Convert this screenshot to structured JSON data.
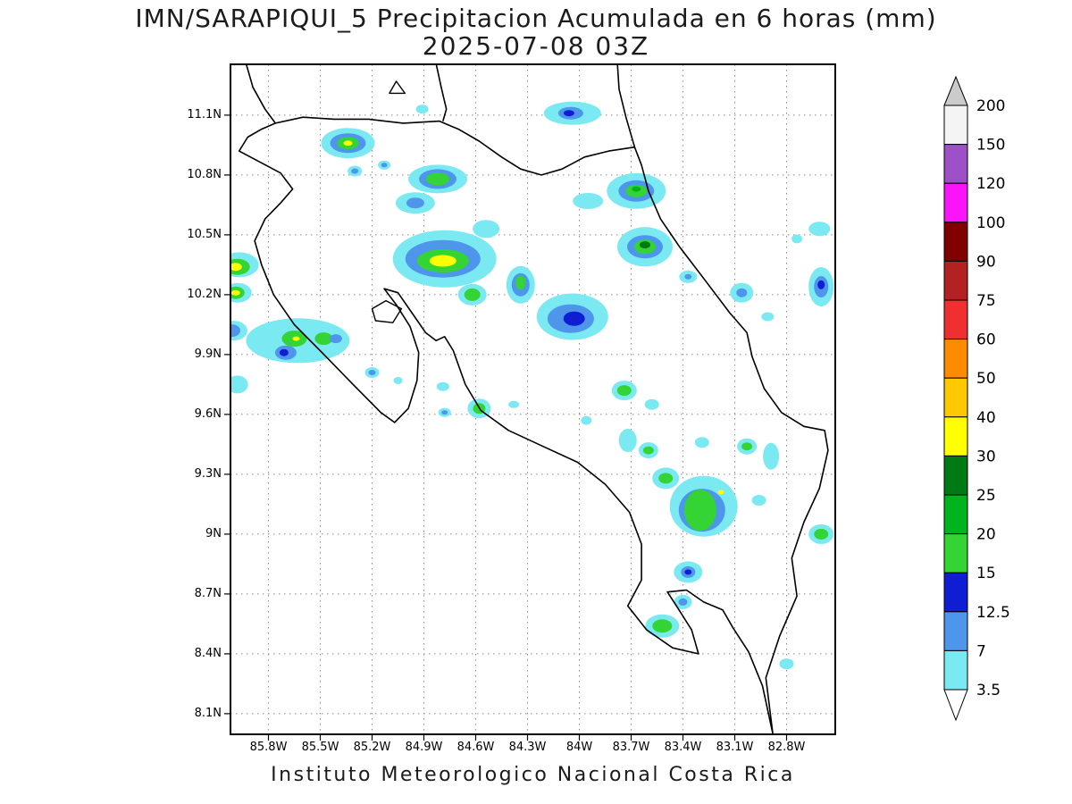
{
  "title": {
    "line1": "IMN/SARAPIQUI_5 Precipitacion Acumulada en 6 horas (mm)",
    "line2": "2025-07-08 03Z"
  },
  "footer": "Instituto Meteorologico Nacional Costa Rica",
  "axes": {
    "lat_ticks": [
      "11.1N",
      "10.8N",
      "10.5N",
      "10.2N",
      "9.9N",
      "9.6N",
      "9.3N",
      "9N",
      "8.7N",
      "8.4N",
      "8.1N"
    ],
    "lon_ticks": [
      "85.8W",
      "85.5W",
      "85.2W",
      "84.9W",
      "84.6W",
      "84.3W",
      "84W",
      "83.7W",
      "83.4W",
      "83.1W",
      "82.8W"
    ]
  },
  "colorbar": {
    "tick_labels": [
      "200",
      "150",
      "120",
      "100",
      "90",
      "75",
      "60",
      "50",
      "40",
      "30",
      "25",
      "20",
      "15",
      "12.5",
      "7",
      "3.5"
    ],
    "segment_colors": [
      "#F4F4F4",
      "#9C51C6",
      "#FA14FA",
      "#800000",
      "#B22222",
      "#F03030",
      "#FF8C00",
      "#FFC800",
      "#FFFF00",
      "#007A14",
      "#00B41E",
      "#33D433",
      "#0F1ED2",
      "#4E96EC",
      "#7BE9F1"
    ],
    "over_color": "#CBCBCB",
    "under_color": "#FFFFFF"
  },
  "map": {
    "coastline_color": "#000000",
    "grid_color": "#8a8a8a",
    "level_colors": {
      "3.5": "#7BE9F1",
      "7": "#4E96EC",
      "12.5": "#0F1ED2",
      "15": "#33D433",
      "20": "#00B41E",
      "25": "#007A14",
      "30": "#FFFF00"
    },
    "coastlines": [
      [
        [
          85.93,
          11.36
        ],
        [
          85.89,
          11.24
        ],
        [
          85.82,
          11.13
        ],
        [
          85.76,
          11.06
        ],
        [
          85.84,
          11.03
        ],
        [
          85.92,
          10.99
        ],
        [
          85.97,
          10.92
        ],
        [
          85.86,
          10.87
        ],
        [
          85.73,
          10.81
        ],
        [
          85.66,
          10.73
        ],
        [
          85.73,
          10.66
        ],
        [
          85.82,
          10.58
        ],
        [
          85.88,
          10.47
        ],
        [
          85.84,
          10.35
        ],
        [
          85.77,
          10.2
        ],
        [
          85.65,
          10.05
        ],
        [
          85.49,
          9.91
        ],
        [
          85.31,
          9.75
        ],
        [
          85.15,
          9.61
        ],
        [
          85.07,
          9.56
        ],
        [
          84.99,
          9.63
        ],
        [
          84.94,
          9.77
        ],
        [
          84.93,
          9.91
        ],
        [
          84.98,
          10.04
        ],
        [
          85.06,
          10.15
        ],
        [
          85.13,
          10.23
        ],
        [
          85.05,
          10.21
        ],
        [
          84.97,
          10.11
        ],
        [
          84.89,
          10.01
        ],
        [
          84.83,
          9.97
        ],
        [
          84.78,
          9.99
        ],
        [
          84.73,
          9.92
        ],
        [
          84.66,
          9.75
        ],
        [
          84.57,
          9.62
        ],
        [
          84.41,
          9.52
        ],
        [
          84.21,
          9.44
        ],
        [
          84.01,
          9.36
        ],
        [
          83.85,
          9.25
        ],
        [
          83.71,
          9.11
        ],
        [
          83.64,
          8.95
        ],
        [
          83.64,
          8.77
        ],
        [
          83.72,
          8.64
        ],
        [
          83.61,
          8.52
        ],
        [
          83.46,
          8.43
        ],
        [
          83.31,
          8.4
        ],
        [
          83.35,
          8.52
        ],
        [
          83.43,
          8.63
        ],
        [
          83.49,
          8.71
        ],
        [
          83.38,
          8.72
        ],
        [
          83.28,
          8.66
        ],
        [
          83.17,
          8.62
        ],
        [
          83.11,
          8.53
        ],
        [
          83.02,
          8.41
        ],
        [
          82.94,
          8.24
        ],
        [
          82.88,
          8.0
        ],
        [
          82.92,
          8.28
        ],
        [
          82.84,
          8.49
        ],
        [
          82.74,
          8.69
        ],
        [
          82.77,
          8.88
        ],
        [
          82.7,
          9.06
        ],
        [
          82.61,
          9.23
        ],
        [
          82.56,
          9.42
        ],
        [
          82.58,
          9.52
        ],
        [
          82.7,
          9.54
        ],
        [
          82.83,
          9.61
        ],
        [
          82.93,
          9.73
        ],
        [
          83.0,
          9.89
        ],
        [
          83.03,
          10.01
        ],
        [
          83.13,
          10.11
        ],
        [
          83.27,
          10.27
        ],
        [
          83.42,
          10.44
        ],
        [
          83.53,
          10.58
        ],
        [
          83.6,
          10.72
        ],
        [
          83.64,
          10.85
        ],
        [
          83.68,
          10.94
        ],
        [
          83.73,
          11.09
        ],
        [
          83.77,
          11.23
        ],
        [
          83.78,
          11.36
        ]
      ],
      [
        [
          85.76,
          11.06
        ],
        [
          85.6,
          11.09
        ],
        [
          85.42,
          11.08
        ],
        [
          85.22,
          11.08
        ],
        [
          85.02,
          11.06
        ],
        [
          84.81,
          11.07
        ],
        [
          84.7,
          11.03
        ],
        [
          84.58,
          10.97
        ],
        [
          84.45,
          10.89
        ],
        [
          84.34,
          10.83
        ],
        [
          84.22,
          10.8
        ],
        [
          84.1,
          10.83
        ],
        [
          83.97,
          10.89
        ],
        [
          83.83,
          10.92
        ],
        [
          83.68,
          10.94
        ]
      ],
      [
        [
          84.83,
          11.36
        ],
        [
          84.8,
          11.24
        ],
        [
          84.77,
          11.13
        ],
        [
          84.79,
          11.07
        ]
      ]
    ],
    "islands": [
      [
        [
          85.06,
          11.27
        ],
        [
          85.01,
          11.21
        ],
        [
          85.1,
          11.21
        ]
      ],
      [
        [
          85.2,
          10.13
        ],
        [
          85.12,
          10.17
        ],
        [
          85.03,
          10.13
        ],
        [
          85.08,
          10.06
        ],
        [
          85.18,
          10.07
        ]
      ]
    ],
    "precip_cells_format": "lon_W, lat_N, rx_px, ry_px, level_mm",
    "precip_cells": [
      [
        84.91,
        11.13,
        7,
        5,
        "3.5"
      ],
      [
        84.04,
        11.11,
        32,
        13,
        "3.5"
      ],
      [
        84.05,
        11.11,
        14,
        7,
        "7"
      ],
      [
        84.06,
        11.11,
        6,
        3.5,
        "12.5"
      ],
      [
        85.34,
        10.96,
        30,
        17,
        "3.5"
      ],
      [
        85.34,
        10.96,
        20,
        11,
        "7"
      ],
      [
        85.34,
        10.96,
        12,
        7,
        "15"
      ],
      [
        85.34,
        10.96,
        5,
        3,
        "30"
      ],
      [
        85.13,
        10.85,
        7,
        5,
        "3.5"
      ],
      [
        85.13,
        10.85,
        3.5,
        2.5,
        "7"
      ],
      [
        85.3,
        10.82,
        8,
        6,
        "3.5"
      ],
      [
        85.3,
        10.82,
        4,
        3,
        "7"
      ],
      [
        84.82,
        10.78,
        33,
        16,
        "3.5"
      ],
      [
        84.82,
        10.78,
        21,
        11,
        "7"
      ],
      [
        84.82,
        10.78,
        13,
        7,
        "15"
      ],
      [
        84.95,
        10.66,
        22,
        12,
        "3.5"
      ],
      [
        84.95,
        10.66,
        10,
        6,
        "7"
      ],
      [
        83.67,
        10.72,
        33,
        20,
        "3.5"
      ],
      [
        83.67,
        10.72,
        20,
        12,
        "7"
      ],
      [
        83.67,
        10.72,
        12,
        7,
        "15"
      ],
      [
        83.67,
        10.73,
        5,
        3,
        "20"
      ],
      [
        83.95,
        10.67,
        17,
        9,
        "3.5"
      ],
      [
        82.61,
        10.53,
        12,
        8,
        "3.5"
      ],
      [
        82.74,
        10.48,
        6,
        5,
        "3.5"
      ],
      [
        84.54,
        10.53,
        15,
        10,
        "3.5"
      ],
      [
        84.78,
        10.38,
        58,
        32,
        "3.5"
      ],
      [
        84.79,
        10.38,
        42,
        21,
        "7"
      ],
      [
        84.79,
        10.37,
        29,
        13,
        "15"
      ],
      [
        84.79,
        10.37,
        15,
        6.5,
        "30"
      ],
      [
        83.62,
        10.44,
        31,
        22,
        "3.5"
      ],
      [
        83.62,
        10.44,
        20,
        13,
        "7"
      ],
      [
        83.62,
        10.44,
        12,
        8,
        "15"
      ],
      [
        83.62,
        10.45,
        6,
        4,
        "25"
      ],
      [
        83.37,
        10.29,
        10,
        7,
        "3.5"
      ],
      [
        83.37,
        10.29,
        4,
        3,
        "7"
      ],
      [
        83.06,
        10.21,
        13,
        11,
        "3.5"
      ],
      [
        83.06,
        10.21,
        6,
        5,
        "7"
      ],
      [
        82.6,
        10.24,
        14,
        22,
        "3.5"
      ],
      [
        82.6,
        10.24,
        8,
        12,
        "7"
      ],
      [
        82.6,
        10.25,
        4,
        5,
        "12.5"
      ],
      [
        82.91,
        10.09,
        7,
        5,
        "3.5"
      ],
      [
        84.62,
        10.2,
        16,
        12,
        "3.5"
      ],
      [
        84.62,
        10.2,
        9,
        7,
        "15"
      ],
      [
        84.34,
        10.25,
        16,
        21,
        "3.5"
      ],
      [
        84.34,
        10.25,
        10,
        13,
        "7"
      ],
      [
        84.34,
        10.26,
        5.5,
        8,
        "15"
      ],
      [
        84.04,
        10.09,
        40,
        26,
        "3.5"
      ],
      [
        84.05,
        10.08,
        26,
        16,
        "7"
      ],
      [
        84.03,
        10.08,
        12,
        8,
        "12.5"
      ],
      [
        85.97,
        10.35,
        22,
        14,
        "3.5"
      ],
      [
        85.98,
        10.34,
        14,
        9,
        "15"
      ],
      [
        85.99,
        10.34,
        7,
        4.5,
        "30"
      ],
      [
        85.98,
        10.21,
        16,
        11,
        "3.5"
      ],
      [
        85.99,
        10.21,
        10,
        7,
        "15"
      ],
      [
        85.99,
        10.21,
        5,
        3,
        "30"
      ],
      [
        85.63,
        9.97,
        58,
        25,
        "3.5"
      ],
      [
        85.7,
        9.91,
        12,
        8,
        "7"
      ],
      [
        85.71,
        9.91,
        5,
        4,
        "12.5"
      ],
      [
        85.65,
        9.98,
        14,
        9,
        "15"
      ],
      [
        85.64,
        9.98,
        4,
        2.5,
        "30"
      ],
      [
        85.48,
        9.98,
        10,
        7,
        "15"
      ],
      [
        85.41,
        9.98,
        7,
        5,
        "7"
      ],
      [
        86.0,
        10.02,
        15,
        11,
        "3.5"
      ],
      [
        86.01,
        10.02,
        9,
        7,
        "7"
      ],
      [
        85.98,
        9.75,
        12,
        10,
        "3.5"
      ],
      [
        85.2,
        9.81,
        8,
        6,
        "3.5"
      ],
      [
        85.2,
        9.81,
        4,
        3,
        "7"
      ],
      [
        85.05,
        9.77,
        5,
        4,
        "3.5"
      ],
      [
        84.79,
        9.74,
        7,
        5,
        "3.5"
      ],
      [
        84.58,
        9.63,
        13,
        11,
        "3.5"
      ],
      [
        84.58,
        9.63,
        7,
        6,
        "15"
      ],
      [
        84.78,
        9.61,
        7,
        5,
        "3.5"
      ],
      [
        84.78,
        9.61,
        3.5,
        2.5,
        "7"
      ],
      [
        84.38,
        9.65,
        6,
        4,
        "3.5"
      ],
      [
        83.74,
        9.72,
        14,
        11,
        "3.5"
      ],
      [
        83.74,
        9.72,
        8,
        6,
        "15"
      ],
      [
        83.58,
        9.65,
        8,
        6,
        "3.5"
      ],
      [
        83.96,
        9.57,
        6,
        5,
        "3.5"
      ],
      [
        83.72,
        9.47,
        10,
        13,
        "3.5"
      ],
      [
        83.6,
        9.42,
        11,
        9,
        "3.5"
      ],
      [
        83.6,
        9.42,
        6,
        4.5,
        "15"
      ],
      [
        83.29,
        9.46,
        8,
        6,
        "3.5"
      ],
      [
        83.03,
        9.44,
        11,
        9,
        "3.5"
      ],
      [
        83.03,
        9.44,
        6,
        4.5,
        "15"
      ],
      [
        82.89,
        9.39,
        9,
        15,
        "3.5"
      ],
      [
        83.5,
        9.28,
        15,
        12,
        "3.5"
      ],
      [
        83.5,
        9.28,
        8,
        6,
        "15"
      ],
      [
        83.28,
        9.14,
        38,
        34,
        "3.5"
      ],
      [
        83.29,
        9.12,
        26,
        24,
        "7"
      ],
      [
        83.3,
        9.12,
        18,
        23,
        "15"
      ],
      [
        83.18,
        9.21,
        3.5,
        2.5,
        "30"
      ],
      [
        82.96,
        9.17,
        8,
        6,
        "3.5"
      ],
      [
        82.6,
        9.0,
        14,
        11,
        "3.5"
      ],
      [
        82.6,
        9.0,
        8,
        6,
        "15"
      ],
      [
        83.37,
        8.81,
        16,
        12,
        "3.5"
      ],
      [
        83.37,
        8.81,
        8,
        6.5,
        "7"
      ],
      [
        83.37,
        8.81,
        4,
        3,
        "12.5"
      ],
      [
        83.4,
        8.66,
        10,
        8,
        "3.5"
      ],
      [
        83.4,
        8.66,
        5,
        4,
        "7"
      ],
      [
        83.52,
        8.54,
        19,
        13,
        "3.5"
      ],
      [
        83.52,
        8.54,
        11,
        7.5,
        "15"
      ],
      [
        82.8,
        8.35,
        8,
        6,
        "3.5"
      ]
    ]
  }
}
